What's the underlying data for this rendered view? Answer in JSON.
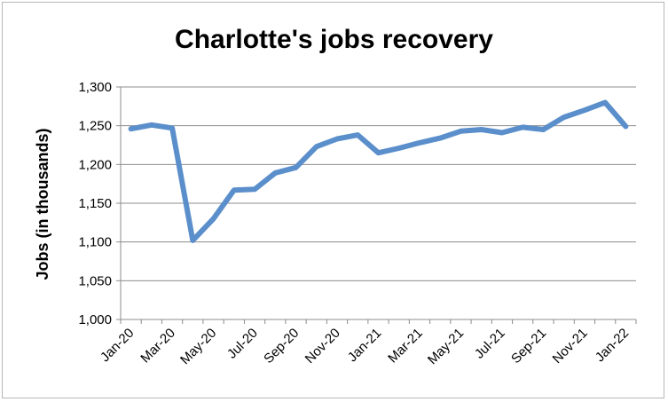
{
  "chart_data": {
    "type": "line",
    "title": "Charlotte's jobs recovery",
    "xlabel": "",
    "ylabel": "Jobs (in thousands)",
    "ylim": [
      1000,
      1300
    ],
    "yticks": [
      1000,
      1050,
      1100,
      1150,
      1200,
      1250,
      1300
    ],
    "ytick_labels": [
      "1,000",
      "1,050",
      "1,100",
      "1,150",
      "1,200",
      "1,250",
      "1,300"
    ],
    "x": [
      "Jan-20",
      "Feb-20",
      "Mar-20",
      "Apr-20",
      "May-20",
      "Jun-20",
      "Jul-20",
      "Aug-20",
      "Sep-20",
      "Oct-20",
      "Nov-20",
      "Dec-20",
      "Jan-21",
      "Feb-21",
      "Mar-21",
      "Apr-21",
      "May-21",
      "Jun-21",
      "Jul-21",
      "Aug-21",
      "Sep-21",
      "Oct-21",
      "Nov-21",
      "Dec-21",
      "Jan-22"
    ],
    "xtick_labels": [
      "Jan-20",
      "Mar-20",
      "May-20",
      "Jul-20",
      "Sep-20",
      "Nov-20",
      "Jan-21",
      "Mar-21",
      "May-21",
      "Jul-21",
      "Sep-21",
      "Nov-21",
      "Jan-22"
    ],
    "series": [
      {
        "values": [
          1246,
          1251,
          1247,
          1102,
          1130,
          1167,
          1168,
          1189,
          1196,
          1223,
          1233,
          1238,
          1215,
          1221,
          1228,
          1234,
          1243,
          1245,
          1241,
          1248,
          1245,
          1261,
          1270,
          1280,
          1249
        ]
      }
    ],
    "line_color": "#5b8fcb",
    "grid": true,
    "legend": "none"
  }
}
